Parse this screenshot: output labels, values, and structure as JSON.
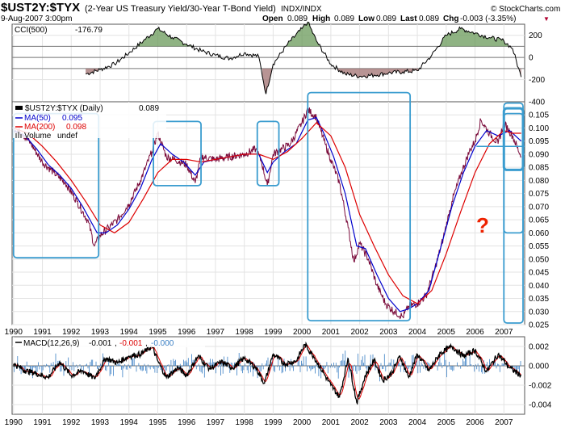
{
  "header": {
    "symbol": "$UST2Y:$TYX",
    "description": "(2-Year US Treasury Yield/30-Year T-Bond Yield)",
    "exchange": "INDX/INDX",
    "source": "© StockCharts.com",
    "date": "9-Aug-2007 3:00pm",
    "open_label": "Open",
    "open": "0.089",
    "high_label": "High",
    "high": "0.089",
    "low_label": "Low",
    "low": "0.089",
    "last_label": "Last",
    "last": "0.089",
    "chg_label": "Chg",
    "chg": "-0.003 (-3.35%)",
    "chg_arrow": "▼"
  },
  "colors": {
    "price": "#7a0a3a",
    "ma50": "#0000cc",
    "ma200": "#dd0000",
    "boxes": "#3a9ccf",
    "cci_pos": "#6a9a5a",
    "cci_neg": "#a07070",
    "macd": "#000000",
    "signal": "#dd0000",
    "hist": "#3a7fc4",
    "annotation": "#ee2200"
  },
  "annotation": {
    "text": "?"
  },
  "chart_data": [
    {
      "id": "cci",
      "type": "line",
      "label": "CCI(500)",
      "value": "-176.79",
      "ylim": [
        -400,
        300
      ],
      "y_ticks": [
        "200",
        "0",
        "-200",
        "-400"
      ],
      "y_tick_values": [
        200,
        0,
        -200,
        -400
      ],
      "ref_lines": [
        100,
        0,
        -100
      ],
      "x": [
        1990.0,
        1990.5,
        1991.0,
        1991.5,
        1992.0,
        1992.5,
        1993.0,
        1993.5,
        1994.0,
        1994.5,
        1995.0,
        1995.5,
        1996.0,
        1996.5,
        1997.0,
        1997.5,
        1998.0,
        1998.5,
        1998.75,
        1999.0,
        1999.5,
        2000.0,
        2000.2,
        2000.5,
        2001.0,
        2001.5,
        2002.0,
        2002.5,
        2003.0,
        2003.5,
        2004.0,
        2004.5,
        2005.0,
        2005.5,
        2006.0,
        2006.5,
        2007.0,
        2007.3,
        2007.6
      ],
      "values": [
        null,
        null,
        null,
        null,
        null,
        -150,
        -110,
        -60,
        40,
        150,
        260,
        180,
        120,
        60,
        20,
        -10,
        40,
        10,
        -330,
        -60,
        120,
        260,
        320,
        150,
        -60,
        -150,
        -170,
        -160,
        -140,
        -130,
        -120,
        20,
        200,
        260,
        220,
        180,
        150,
        80,
        -177
      ]
    },
    {
      "id": "price",
      "type": "line",
      "legend": [
        {
          "label": "$UST2Y:$TYX (Daily)",
          "value": "0.089"
        },
        {
          "label": "MA(50)",
          "value": "0.095"
        },
        {
          "label": "MA(200)",
          "value": "0.098"
        },
        {
          "label": "Volume",
          "value": "undef"
        }
      ],
      "ylim": [
        0.025,
        0.11
      ],
      "y_ticks": [
        "0.105",
        "0.100",
        "0.095",
        "0.090",
        "0.085",
        "0.080",
        "0.075",
        "0.070",
        "0.065",
        "0.060",
        "0.055",
        "0.050",
        "0.045",
        "0.040",
        "0.035",
        "0.030",
        "0.025"
      ],
      "y_tick_values": [
        0.105,
        0.1,
        0.095,
        0.09,
        0.085,
        0.08,
        0.075,
        0.07,
        0.065,
        0.06,
        0.055,
        0.05,
        0.045,
        0.04,
        0.035,
        0.03,
        0.025
      ],
      "x_ticks": [
        "1990",
        "1991",
        "1992",
        "1993",
        "1994",
        "1995",
        "1996",
        "1997",
        "1998",
        "1999",
        "2000",
        "2001",
        "2002",
        "2003",
        "2004",
        "2005",
        "2006",
        "2007"
      ],
      "x_tick_values": [
        1990,
        1991,
        1992,
        1993,
        1994,
        1995,
        1996,
        1997,
        1998,
        1999,
        2000,
        2001,
        2002,
        2003,
        2004,
        2005,
        2006,
        2007
      ],
      "xlim": [
        1989.95,
        2007.72
      ],
      "series": [
        {
          "name": "$UST2Y:$TYX (Daily)",
          "x": [
            1990.0,
            1990.3,
            1990.6,
            1991.0,
            1991.4,
            1991.8,
            1992.2,
            1992.6,
            1992.8,
            1993.0,
            1993.3,
            1993.6,
            1994.0,
            1994.4,
            1994.8,
            1995.0,
            1995.3,
            1995.6,
            1996.0,
            1996.3,
            1996.5,
            1997.0,
            1997.5,
            1998.0,
            1998.4,
            1998.6,
            1998.8,
            1999.0,
            1999.3,
            1999.6,
            2000.0,
            2000.2,
            2000.5,
            2000.8,
            2001.0,
            2001.3,
            2001.6,
            2001.8,
            2002.0,
            2002.3,
            2002.6,
            2002.9,
            2003.2,
            2003.5,
            2003.7,
            2004.0,
            2004.3,
            2004.6,
            2004.9,
            2005.2,
            2005.5,
            2005.8,
            2006.0,
            2006.2,
            2006.5,
            2006.8,
            2007.0,
            2007.3,
            2007.6
          ],
          "values": [
            0.1,
            0.098,
            0.094,
            0.087,
            0.083,
            0.079,
            0.072,
            0.064,
            0.055,
            0.059,
            0.062,
            0.065,
            0.071,
            0.08,
            0.091,
            0.098,
            0.089,
            0.088,
            0.086,
            0.079,
            0.089,
            0.088,
            0.089,
            0.09,
            0.092,
            0.087,
            0.078,
            0.09,
            0.092,
            0.094,
            0.102,
            0.107,
            0.104,
            0.094,
            0.088,
            0.079,
            0.062,
            0.049,
            0.056,
            0.05,
            0.04,
            0.033,
            0.03,
            0.028,
            0.032,
            0.033,
            0.036,
            0.046,
            0.058,
            0.072,
            0.082,
            0.091,
            0.095,
            0.103,
            0.098,
            0.094,
            0.102,
            0.097,
            0.089
          ]
        },
        {
          "name": "MA(50)",
          "x": [
            1990.0,
            1990.4,
            1990.8,
            1991.2,
            1991.6,
            1992.0,
            1992.4,
            1992.9,
            1993.2,
            1993.6,
            1994.0,
            1994.4,
            1994.8,
            1995.1,
            1995.5,
            1995.9,
            1996.3,
            1996.6,
            1997.0,
            1997.5,
            1998.0,
            1998.5,
            1998.8,
            1999.0,
            1999.4,
            1999.8,
            2000.2,
            2000.5,
            2000.8,
            2001.1,
            2001.5,
            2001.9,
            2002.2,
            2002.6,
            2003.0,
            2003.4,
            2003.7,
            2004.0,
            2004.4,
            2004.8,
            2005.2,
            2005.6,
            2006.0,
            2006.4,
            2006.8,
            2007.2,
            2007.6
          ],
          "values": [
            0.099,
            0.097,
            0.092,
            0.086,
            0.082,
            0.077,
            0.07,
            0.06,
            0.06,
            0.063,
            0.069,
            0.077,
            0.088,
            0.094,
            0.09,
            0.087,
            0.082,
            0.087,
            0.088,
            0.089,
            0.09,
            0.09,
            0.083,
            0.087,
            0.091,
            0.094,
            0.103,
            0.104,
            0.097,
            0.089,
            0.075,
            0.055,
            0.054,
            0.044,
            0.035,
            0.03,
            0.031,
            0.033,
            0.038,
            0.054,
            0.07,
            0.083,
            0.093,
            0.099,
            0.097,
            0.099,
            0.095
          ]
        },
        {
          "name": "MA(200)",
          "x": [
            1990.0,
            1990.5,
            1991.0,
            1991.5,
            1992.0,
            1992.5,
            1993.0,
            1993.5,
            1994.0,
            1994.5,
            1995.0,
            1995.5,
            1996.0,
            1996.5,
            1997.0,
            1997.5,
            1998.0,
            1998.5,
            1999.0,
            1999.5,
            2000.0,
            2000.5,
            2001.0,
            2001.5,
            2002.0,
            2002.5,
            2003.0,
            2003.5,
            2004.0,
            2004.5,
            2005.0,
            2005.5,
            2006.0,
            2006.5,
            2007.0,
            2007.3,
            2007.6
          ],
          "values": [
            0.1,
            0.098,
            0.093,
            0.087,
            0.08,
            0.072,
            0.063,
            0.06,
            0.064,
            0.073,
            0.083,
            0.088,
            0.088,
            0.087,
            0.088,
            0.089,
            0.09,
            0.09,
            0.088,
            0.091,
            0.096,
            0.102,
            0.097,
            0.085,
            0.067,
            0.055,
            0.044,
            0.036,
            0.033,
            0.038,
            0.052,
            0.068,
            0.083,
            0.094,
            0.099,
            0.098,
            0.098
          ]
        }
      ],
      "boxes": [
        {
          "x0": 1990.0,
          "x1": 1992.95,
          "y0": 0.0505,
          "y1": 0.1055
        },
        {
          "x0": 1994.85,
          "x1": 1996.5,
          "y0": 0.078,
          "y1": 0.1025
        },
        {
          "x0": 1998.45,
          "x1": 1999.2,
          "y0": 0.078,
          "y1": 0.1025
        },
        {
          "x0": 2000.2,
          "x1": 2003.75,
          "y0": 0.0265,
          "y1": 0.1135
        },
        {
          "x0": 2007.0,
          "x1": 2007.72,
          "y0": 0.0255,
          "y1": 0.1095
        },
        {
          "x0": 2007.0,
          "x1": 2007.72,
          "y0": 0.084,
          "y1": 0.1075
        },
        {
          "x0": 2007.0,
          "x1": 2007.72,
          "y0": 0.06,
          "y1": 0.1055
        }
      ],
      "hline": 0.093
    },
    {
      "id": "macd",
      "type": "line",
      "label": "MACD(12,26,9)",
      "macd_value": "-0.001",
      "signal_value": "-0.001",
      "hist_value": "-0.000",
      "ylim": [
        -0.005,
        0.003
      ],
      "y_ticks": [
        "0.002",
        "0.000",
        "-0.002",
        "-0.004"
      ],
      "y_tick_values": [
        0.002,
        0.0,
        -0.002,
        -0.004
      ],
      "x": [
        1990.0,
        1990.4,
        1990.8,
        1991.2,
        1991.6,
        1992.0,
        1992.4,
        1992.8,
        1993.2,
        1993.6,
        1994.0,
        1994.4,
        1994.8,
        1995.0,
        1995.3,
        1995.7,
        1996.0,
        1996.4,
        1996.8,
        1997.2,
        1997.6,
        1998.0,
        1998.4,
        1998.7,
        1999.0,
        1999.4,
        1999.8,
        2000.1,
        2000.4,
        2000.8,
        2001.0,
        2001.3,
        2001.6,
        2001.9,
        2002.2,
        2002.5,
        2002.8,
        2003.1,
        2003.4,
        2003.7,
        2004.0,
        2004.4,
        2004.8,
        2005.2,
        2005.6,
        2006.0,
        2006.4,
        2006.8,
        2007.2,
        2007.6
      ],
      "values": [
        0.0002,
        -0.0005,
        -0.0008,
        -0.0012,
        0.0004,
        -0.001,
        -0.0005,
        -0.0013,
        0.0008,
        0.0003,
        0.001,
        0.0012,
        0.002,
        0.0005,
        -0.0012,
        -0.0002,
        -0.001,
        0.001,
        -0.0003,
        0.0004,
        -0.0002,
        0.0008,
        -0.0002,
        -0.0018,
        0.0012,
        0.0002,
        0.0005,
        0.0022,
        0.001,
        -0.001,
        -0.002,
        -0.0032,
        0.0008,
        -0.0038,
        -0.001,
        0.0006,
        -0.0015,
        -0.0008,
        0.001,
        -0.0012,
        0.0012,
        -0.0005,
        0.0013,
        0.002,
        0.001,
        0.0016,
        -0.0006,
        0.0012,
        -0.0002,
        -0.001
      ]
    }
  ]
}
